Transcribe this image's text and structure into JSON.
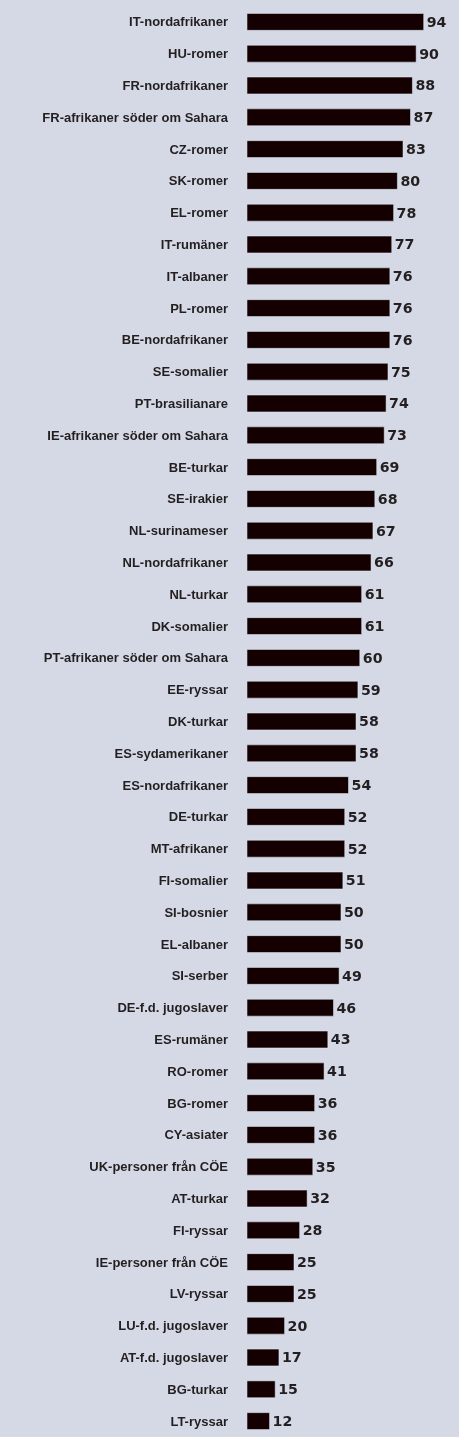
{
  "chart_data": {
    "type": "bar",
    "orientation": "horizontal",
    "color": "#140000",
    "data_labels": true,
    "categories": [
      "IT-nordafrikaner",
      "HU-romer",
      "FR-nordafrikaner",
      "FR-afrikaner söder om Sahara",
      "CZ-romer",
      "SK-romer",
      "EL-romer",
      "IT-rumäner",
      "IT-albaner",
      "PL-romer",
      "BE-nordafrikaner",
      "SE-somalier",
      "PT-brasilianare",
      "IE-afrikaner söder om Sahara",
      "BE-turkar",
      "SE-irakier",
      "NL-surinameser",
      "NL-nordafrikaner",
      "NL-turkar",
      "DK-somalier",
      "PT-afrikaner söder om Sahara",
      "EE-ryssar",
      "DK-turkar",
      "ES-sydamerikaner",
      "ES-nordafrikaner",
      "DE-turkar",
      "MT-afrikaner",
      "FI-somalier",
      "SI-bosnier",
      "EL-albaner",
      "SI-serber",
      "DE-f.d. jugoslaver",
      "ES-rumäner",
      "RO-romer",
      "BG-romer",
      "CY-asiater",
      "UK-personer från CÖE",
      "AT-turkar",
      "FI-ryssar",
      "IE-personer från CÖE",
      "LV-ryssar",
      "LU-f.d. jugoslaver",
      "AT-f.d. jugoslaver",
      "BG-turkar",
      "LT-ryssar"
    ],
    "values": [
      94,
      90,
      88,
      87,
      83,
      80,
      78,
      77,
      76,
      76,
      76,
      75,
      74,
      73,
      69,
      68,
      67,
      66,
      61,
      61,
      60,
      59,
      58,
      58,
      54,
      52,
      52,
      51,
      50,
      50,
      49,
      46,
      43,
      41,
      36,
      36,
      35,
      32,
      28,
      25,
      25,
      20,
      17,
      15,
      12
    ]
  }
}
